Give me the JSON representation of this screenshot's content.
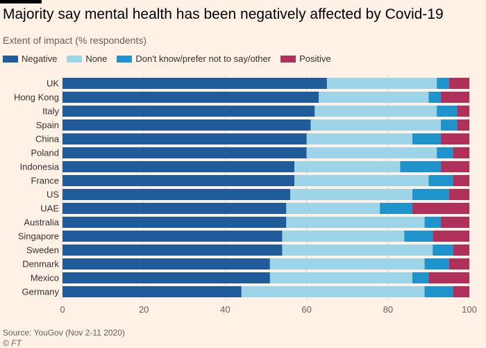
{
  "header": {
    "title": "Majority say mental health has been negatively affected by Covid-19",
    "subtitle": "Extent of impact (% respondents)"
  },
  "footer": {
    "source": "Source: YouGov (Nov 2-11 2020)",
    "credit": "© FT"
  },
  "colors": {
    "background": "#fff1e5",
    "negative": "#1f5c99",
    "none": "#9ed4e8",
    "dont_know": "#1f94cc",
    "positive": "#b0305c",
    "gridline": "#e0d6cc",
    "axis_text": "#66605c",
    "label_text": "#33302e"
  },
  "chart_data": {
    "type": "bar",
    "orientation": "horizontal",
    "stacked": true,
    "title": "Majority say mental health has been negatively affected by Covid-19",
    "subtitle": "Extent of impact (% respondents)",
    "xlabel": "",
    "ylabel": "",
    "xlim": [
      0,
      100
    ],
    "xticks": [
      0,
      20,
      40,
      60,
      80,
      100
    ],
    "grid": true,
    "legend_position": "top-left",
    "categories": [
      "UK",
      "Hong Kong",
      "Italy",
      "Spain",
      "China",
      "Poland",
      "Indonesia",
      "France",
      "US",
      "UAE",
      "Australia",
      "Singapore",
      "Sweden",
      "Denmark",
      "Mexico",
      "Germany"
    ],
    "series": [
      {
        "name": "Negative",
        "color": "#1f5c99",
        "values": [
          65,
          63,
          62,
          61,
          60,
          60,
          57,
          57,
          56,
          55,
          55,
          54,
          54,
          51,
          51,
          44
        ]
      },
      {
        "name": "None",
        "color": "#9ed4e8",
        "values": [
          27,
          27,
          30,
          32,
          26,
          32,
          26,
          33,
          30,
          23,
          34,
          30,
          37,
          38,
          35,
          45
        ]
      },
      {
        "name": "Don't know/prefer not to say/other",
        "color": "#1f94cc",
        "values": [
          3,
          3,
          5,
          4,
          7,
          4,
          10,
          6,
          9,
          8,
          4,
          7,
          5,
          6,
          4,
          7
        ]
      },
      {
        "name": "Positive",
        "color": "#b0305c",
        "values": [
          5,
          7,
          3,
          3,
          7,
          4,
          7,
          4,
          5,
          14,
          7,
          9,
          4,
          5,
          10,
          4
        ]
      }
    ]
  }
}
